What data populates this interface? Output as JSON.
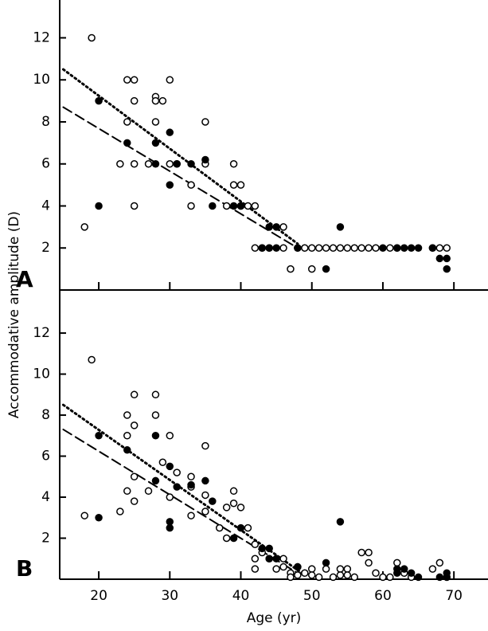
{
  "chart_data": [
    {
      "type": "scatter",
      "label": "A",
      "ylabel": "Accommodative amplitude (D)",
      "xlim": [
        14.5,
        74.8
      ],
      "ylim": [
        0,
        13.8
      ],
      "xticks": [
        20,
        30,
        40,
        50,
        60,
        70
      ],
      "show_xtick_labels": false,
      "yticks": [
        2,
        4,
        6,
        8,
        10,
        12
      ],
      "series": [
        {
          "marker": "open",
          "color": "#000000",
          "x": [
            18,
            19,
            24,
            24,
            25,
            25,
            25,
            25,
            23,
            27,
            28,
            28,
            28,
            29,
            30,
            30,
            31,
            33,
            33,
            35,
            35,
            38,
            39,
            39,
            40,
            40,
            41,
            42,
            42,
            43,
            44,
            46,
            46,
            47,
            48,
            49,
            50,
            50,
            51,
            52,
            53,
            54,
            55,
            56,
            57,
            58,
            59,
            61,
            62,
            67,
            68,
            69
          ],
          "values": [
            3,
            12,
            10,
            8,
            10,
            9,
            6,
            4,
            6,
            6,
            9.2,
            8,
            9,
            9,
            10,
            6,
            6,
            5,
            4,
            8,
            6,
            4,
            6,
            5,
            5,
            4,
            4,
            4,
            2,
            2,
            2,
            3,
            2,
            1,
            2,
            2,
            2,
            1,
            2,
            2,
            2,
            2,
            2,
            2,
            2,
            2,
            2,
            2,
            2,
            2,
            2,
            2
          ]
        },
        {
          "marker": "filled",
          "color": "#000000",
          "x": [
            20,
            20,
            24,
            28,
            28,
            30,
            30,
            31,
            33,
            35,
            36,
            39,
            40,
            43,
            44,
            44,
            45,
            45,
            48,
            52,
            54,
            60,
            62,
            63,
            64,
            65,
            67,
            68,
            69,
            69
          ],
          "values": [
            9,
            4,
            7,
            7,
            6,
            7.5,
            5,
            6,
            6,
            6.2,
            4,
            4,
            4,
            2,
            3,
            2,
            3,
            2,
            2,
            1,
            3,
            2,
            2,
            2,
            2,
            2,
            2,
            1.5,
            1.5,
            1
          ]
        }
      ],
      "lines": [
        {
          "style": "dotted",
          "x": [
            15,
            48
          ],
          "values": [
            10.5,
            2.2
          ]
        },
        {
          "style": "dashed",
          "x": [
            15,
            48
          ],
          "values": [
            8.7,
            2.0
          ]
        }
      ]
    },
    {
      "type": "scatter",
      "label": "B",
      "xlabel": "Age (yr)",
      "xlim": [
        14.5,
        74.8
      ],
      "ylim": [
        0,
        14.1
      ],
      "xticks": [
        20,
        30,
        40,
        50,
        60,
        70
      ],
      "show_xtick_labels": true,
      "yticks": [
        2,
        4,
        6,
        8,
        10,
        12
      ],
      "series": [
        {
          "marker": "open",
          "color": "#000000",
          "x": [
            18,
            19,
            23,
            24,
            24,
            24,
            25,
            25,
            25,
            25,
            27,
            28,
            28,
            29,
            30,
            30,
            31,
            33,
            33,
            33,
            35,
            35,
            35,
            37,
            38,
            38,
            39,
            39,
            40,
            41,
            42,
            42,
            42,
            43,
            44,
            45,
            46,
            46,
            47,
            47,
            48,
            48,
            49,
            50,
            50,
            51,
            52,
            53,
            54,
            54,
            55,
            55,
            56,
            57,
            58,
            58,
            59,
            60,
            61,
            62,
            63,
            64,
            67,
            68,
            69
          ],
          "values": [
            3.1,
            10.7,
            3.3,
            8,
            7,
            4.3,
            9,
            7.5,
            5,
            3.8,
            4.3,
            9,
            8,
            5.7,
            7,
            4,
            5.2,
            5,
            4.5,
            3.1,
            6.5,
            4.1,
            3.3,
            2.5,
            3.5,
            2,
            4.3,
            3.7,
            3.5,
            2.5,
            1.7,
            1,
            0.5,
            1.3,
            1,
            0.5,
            1,
            0.6,
            0.3,
            0.1,
            0.2,
            0.6,
            0.3,
            0.5,
            0.2,
            0.1,
            0.5,
            0.1,
            0.5,
            0.2,
            0.5,
            0.2,
            0.1,
            1.3,
            1.3,
            0.8,
            0.3,
            0.1,
            0.1,
            0.8,
            0.3,
            0.1,
            0.5,
            0.8,
            0.1
          ]
        },
        {
          "marker": "filled",
          "color": "#000000",
          "x": [
            20,
            20,
            24,
            28,
            28,
            30,
            30,
            30,
            31,
            33,
            35,
            36,
            39,
            40,
            43,
            44,
            44,
            45,
            48,
            52,
            54,
            62,
            62,
            63,
            64,
            65,
            68,
            69,
            69
          ],
          "values": [
            7,
            3,
            6.3,
            7,
            4.8,
            5.5,
            2.8,
            2.5,
            4.5,
            4.6,
            4.8,
            3.8,
            2,
            2.5,
            1.5,
            1.5,
            1,
            1,
            0.6,
            0.8,
            2.8,
            0.5,
            0.3,
            0.5,
            0.3,
            0.1,
            0.1,
            0.3,
            0.1
          ]
        }
      ],
      "lines": [
        {
          "style": "dotted",
          "x": [
            15,
            49
          ],
          "values": [
            8.5,
            0.2
          ]
        },
        {
          "style": "dashed",
          "x": [
            15,
            48
          ],
          "values": [
            7.3,
            0.3
          ]
        }
      ]
    }
  ]
}
